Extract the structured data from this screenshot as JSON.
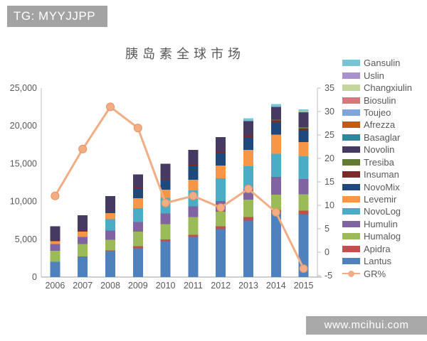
{
  "header": {
    "tag_label": "TG: MYYJJPP"
  },
  "footer": {
    "site_label": "www.mcihui.com"
  },
  "chart_data": {
    "type": "bar",
    "subtype": "stacked-bar-with-line",
    "title": "胰岛素全球市场",
    "categories": [
      "2006",
      "2007",
      "2008",
      "2009",
      "2010",
      "2011",
      "2012",
      "2013",
      "2014",
      "2015"
    ],
    "series": [
      {
        "name": "Lantus",
        "color": "#4f81bd",
        "values": [
          2000,
          2700,
          3450,
          3800,
          4690,
          5320,
          6340,
          7460,
          8580,
          8290
        ]
      },
      {
        "name": "Apidra",
        "color": "#c0504d",
        "values": [
          20,
          40,
          90,
          300,
          280,
          280,
          370,
          470,
          280,
          500
        ]
      },
      {
        "name": "Humalog",
        "color": "#9bbb59",
        "values": [
          1450,
          1650,
          1400,
          1900,
          2050,
          2330,
          1960,
          2330,
          2050,
          2150
        ]
      },
      {
        "name": "Humulin",
        "color": "#8064a2",
        "values": [
          850,
          850,
          1200,
          1300,
          1400,
          1400,
          1400,
          1400,
          2330,
          2050
        ]
      },
      {
        "name": "NovoLog",
        "color": "#4bacc6",
        "values": [
          80,
          120,
          1500,
          1800,
          2050,
          2150,
          2990,
          2990,
          3080,
          2990
        ]
      },
      {
        "name": "Levemir",
        "color": "#f79646",
        "values": [
          330,
          640,
          840,
          1350,
          1080,
          1400,
          1700,
          2150,
          2520,
          1870
        ]
      },
      {
        "name": "NovoMix",
        "color": "#1f497d",
        "values": [
          60,
          90,
          150,
          1250,
          1350,
          1770,
          1680,
          1680,
          1590,
          1590
        ]
      },
      {
        "name": "Insuman",
        "color": "#7d2b2a",
        "values": [
          40,
          60,
          80,
          150,
          180,
          190,
          190,
          280,
          280,
          180
        ]
      },
      {
        "name": "Tresiba",
        "color": "#637a33",
        "values": [
          0,
          0,
          0,
          0,
          0,
          0,
          0,
          0,
          100,
          190
        ]
      },
      {
        "name": "Novolin",
        "color": "#473a62",
        "values": [
          1870,
          2050,
          1990,
          1750,
          1920,
          1960,
          1870,
          1870,
          1720,
          1960
        ]
      },
      {
        "name": "Basaglar",
        "color": "#31859c",
        "values": [
          0,
          0,
          0,
          0,
          0,
          0,
          0,
          0,
          0,
          30
        ]
      },
      {
        "name": "Afrezza",
        "color": "#c55a11",
        "values": [
          0,
          0,
          0,
          0,
          0,
          0,
          0,
          0,
          0,
          20
        ]
      },
      {
        "name": "Toujeo",
        "color": "#7ea6dc",
        "values": [
          0,
          0,
          0,
          0,
          0,
          0,
          0,
          0,
          0,
          60
        ]
      },
      {
        "name": "Biosulin",
        "color": "#d9777c",
        "values": [
          0,
          0,
          0,
          0,
          0,
          0,
          0,
          0,
          0,
          40
        ]
      },
      {
        "name": "Changxiulin",
        "color": "#c3d69b",
        "values": [
          0,
          0,
          0,
          0,
          0,
          0,
          0,
          0,
          0,
          50
        ]
      },
      {
        "name": "Uslin",
        "color": "#a891cc",
        "values": [
          0,
          0,
          0,
          0,
          0,
          0,
          0,
          0,
          0,
          30
        ]
      },
      {
        "name": "Gansulin",
        "color": "#79c3d6",
        "values": [
          0,
          0,
          0,
          0,
          0,
          0,
          0,
          370,
          370,
          200
        ]
      }
    ],
    "totals": [
      6700,
      8200,
      10700,
      13600,
      15000,
      16800,
      18500,
      21000,
      22900,
      22200
    ],
    "line_series": {
      "name": "GR%",
      "color": "#f2ad84",
      "marker_stroke": "#e8945f",
      "values": [
        12,
        22,
        31,
        26.5,
        10.5,
        12,
        9.5,
        13.5,
        8.5,
        -3.5
      ]
    },
    "left_axis": {
      "min": 0,
      "max": 25000,
      "step": 5000,
      "ticks": [
        0,
        5000,
        10000,
        15000,
        20000,
        25000
      ],
      "labels": [
        "0",
        "5,000",
        "10,000",
        "15,000",
        "20,000",
        "25,000"
      ]
    },
    "right_axis": {
      "min": -5,
      "max": 35,
      "step": 5,
      "ticks": [
        -5,
        0,
        5,
        10,
        15,
        20,
        25,
        30,
        35
      ],
      "labels": [
        "-5",
        "0",
        "5",
        "10",
        "15",
        "20",
        "25",
        "30",
        "35"
      ]
    },
    "grid": false,
    "legend_position": "right",
    "axis_text_color": "#595959",
    "axis_line_color": "#bfbfbf"
  }
}
